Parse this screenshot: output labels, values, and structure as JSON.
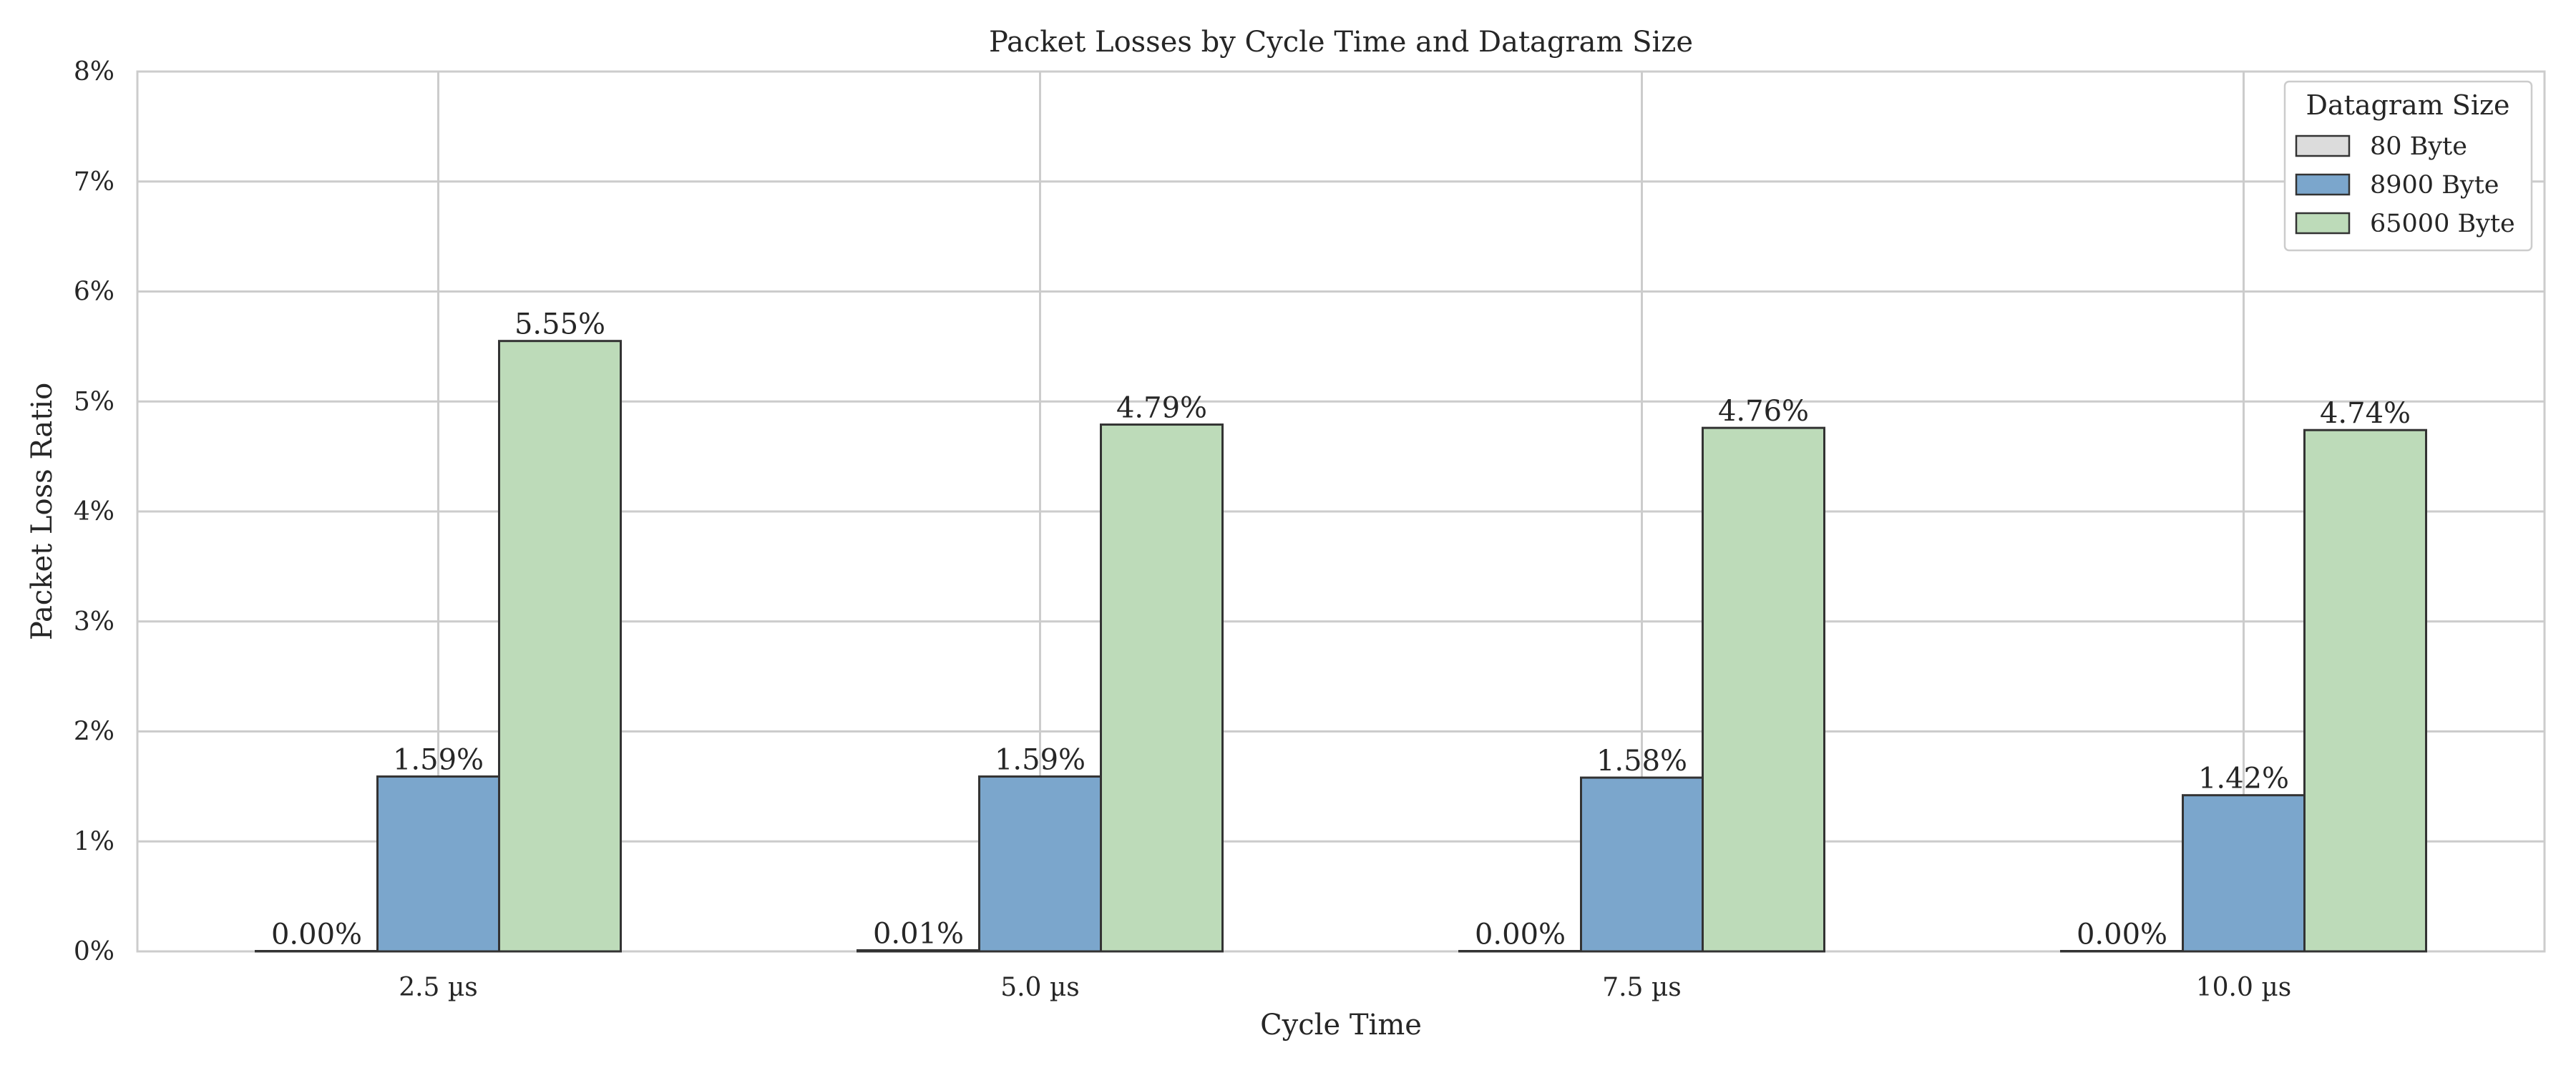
{
  "chart_data": {
    "type": "bar",
    "title": "Packet Losses by Cycle Time and Datagram Size",
    "xlabel": "Cycle Time",
    "ylabel": "Packet Loss Ratio",
    "categories": [
      "2.5 µs",
      "5.0 µs",
      "7.5 µs",
      "10.0 µs"
    ],
    "ylim": [
      0,
      8
    ],
    "yticks": [
      "0%",
      "1%",
      "2%",
      "3%",
      "4%",
      "5%",
      "6%",
      "7%",
      "8%"
    ],
    "grid": true,
    "legend": {
      "title": "Datagram Size",
      "position": "top-right"
    },
    "series": [
      {
        "name": "80 Byte",
        "color": "#dcdcdc",
        "values": [
          0.0,
          0.01,
          0.0,
          0.0
        ],
        "labels": [
          "0.00%",
          "0.01%",
          "0.00%",
          "0.00%"
        ]
      },
      {
        "name": "8900 Byte",
        "color": "#7ba6cc",
        "values": [
          1.59,
          1.59,
          1.58,
          1.42
        ],
        "labels": [
          "1.59%",
          "1.59%",
          "1.58%",
          "1.42%"
        ]
      },
      {
        "name": "65000 Byte",
        "color": "#bddbb9",
        "values": [
          5.55,
          4.79,
          4.76,
          4.74
        ],
        "labels": [
          "5.55%",
          "4.79%",
          "4.76%",
          "4.74%"
        ]
      }
    ]
  }
}
